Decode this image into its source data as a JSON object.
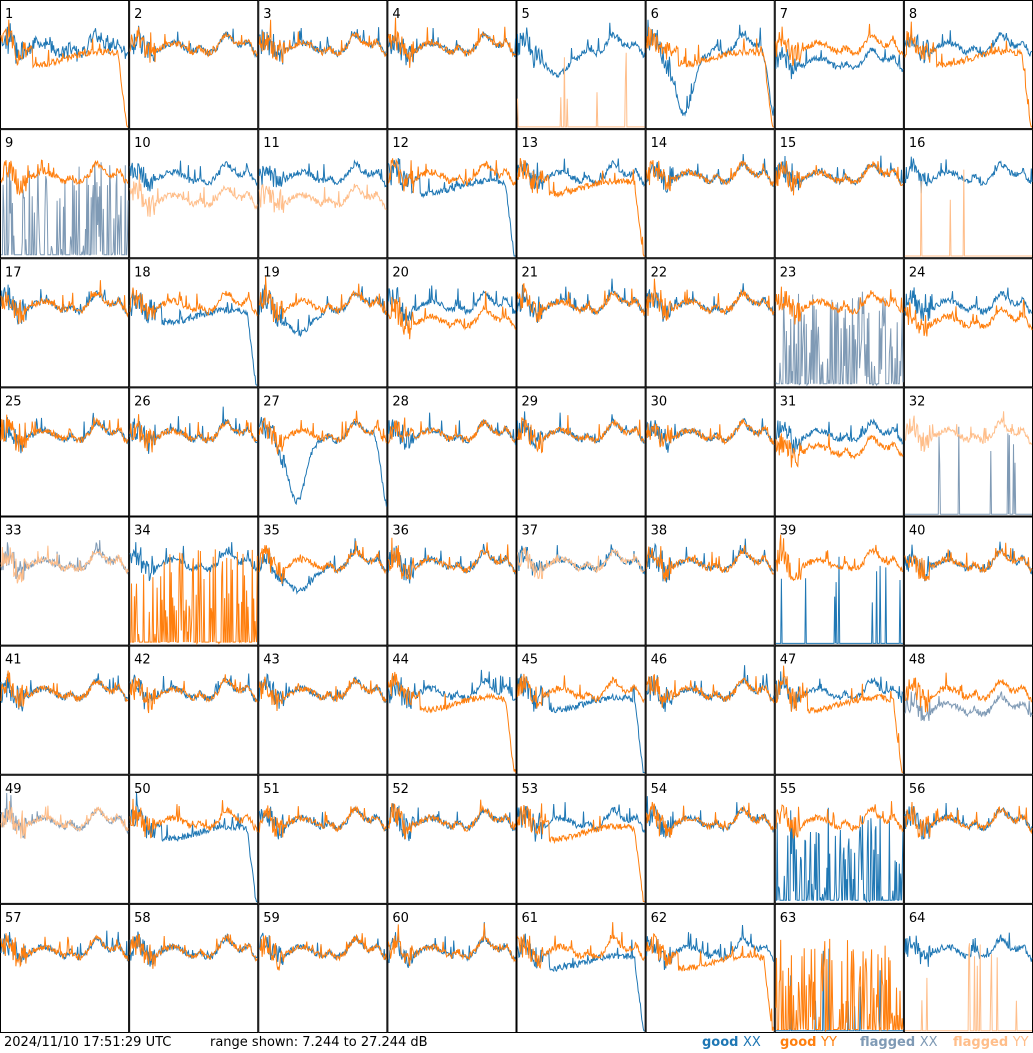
{
  "footer": {
    "timestamp": "2024/11/10 17:51:29 UTC",
    "range_text": "range shown: 7.244 to 27.244 dB"
  },
  "legend": [
    {
      "status": "good",
      "pol": "XX",
      "color": "#1f77b4"
    },
    {
      "status": "good",
      "pol": "YY",
      "color": "#ff7f0e"
    },
    {
      "status": "flagged",
      "pol": "XX",
      "color": "#7f9ab5"
    },
    {
      "status": "flagged",
      "pol": "YY",
      "color": "#ffbe8a"
    }
  ],
  "colors": {
    "good_xx": "#1f77b4",
    "good_yy": "#ff7f0e",
    "flagged_xx": "#7f9ab5",
    "flagged_yy": "#ffbe8a",
    "grid_line": "#000000"
  },
  "chart_data": {
    "type": "line",
    "layout": "8x8 small multiples (one panel per antenna/tile)",
    "ylim_db": [
      7.244,
      27.244
    ],
    "panels": [
      {
        "id": "1",
        "xx": "good",
        "yy": "good",
        "xx_shape": "ripple",
        "yy_shape": "rolloff"
      },
      {
        "id": "2",
        "xx": "good",
        "yy": "good",
        "xx_shape": "normal",
        "yy_shape": "normal"
      },
      {
        "id": "3",
        "xx": "good",
        "yy": "good",
        "xx_shape": "normal",
        "yy_shape": "normal"
      },
      {
        "id": "4",
        "xx": "good",
        "yy": "good",
        "xx_shape": "normal",
        "yy_shape": "normal"
      },
      {
        "id": "5",
        "xx": "good",
        "yy": "flagged",
        "xx_shape": "dip",
        "yy_shape": "dead"
      },
      {
        "id": "6",
        "xx": "good",
        "yy": "good",
        "xx_shape": "deepdip",
        "yy_shape": "rolloff"
      },
      {
        "id": "7",
        "xx": "good",
        "yy": "good",
        "xx_shape": "split",
        "yy_shape": "normal"
      },
      {
        "id": "8",
        "xx": "good",
        "yy": "good",
        "xx_shape": "normal",
        "yy_shape": "rolloff"
      },
      {
        "id": "9",
        "xx": "flagged",
        "yy": "good",
        "xx_shape": "spiky",
        "yy_shape": "normal"
      },
      {
        "id": "10",
        "xx": "good",
        "yy": "flagged",
        "xx_shape": "normal",
        "yy_shape": "low"
      },
      {
        "id": "11",
        "xx": "good",
        "yy": "flagged",
        "xx_shape": "normal",
        "yy_shape": "low"
      },
      {
        "id": "12",
        "xx": "good",
        "yy": "good",
        "xx_shape": "rolloff",
        "yy_shape": "normal"
      },
      {
        "id": "13",
        "xx": "good",
        "yy": "good",
        "xx_shape": "normal",
        "yy_shape": "rolloff"
      },
      {
        "id": "14",
        "xx": "good",
        "yy": "good",
        "xx_shape": "normal",
        "yy_shape": "normal"
      },
      {
        "id": "15",
        "xx": "good",
        "yy": "good",
        "xx_shape": "normal",
        "yy_shape": "normal"
      },
      {
        "id": "16",
        "xx": "good",
        "yy": "flagged",
        "xx_shape": "normal",
        "yy_shape": "dead"
      },
      {
        "id": "17",
        "xx": "good",
        "yy": "good",
        "xx_shape": "normal",
        "yy_shape": "normal"
      },
      {
        "id": "18",
        "xx": "good",
        "yy": "good",
        "xx_shape": "rolloff",
        "yy_shape": "normal"
      },
      {
        "id": "19",
        "xx": "good",
        "yy": "good",
        "xx_shape": "dip",
        "yy_shape": "normal"
      },
      {
        "id": "20",
        "xx": "good",
        "yy": "good",
        "xx_shape": "normal",
        "yy_shape": "split"
      },
      {
        "id": "21",
        "xx": "good",
        "yy": "good",
        "xx_shape": "normal",
        "yy_shape": "normal"
      },
      {
        "id": "22",
        "xx": "good",
        "yy": "good",
        "xx_shape": "normal",
        "yy_shape": "normal"
      },
      {
        "id": "23",
        "xx": "flagged",
        "yy": "good",
        "xx_shape": "spiky",
        "yy_shape": "normal"
      },
      {
        "id": "24",
        "xx": "good",
        "yy": "good",
        "xx_shape": "normal",
        "yy_shape": "split"
      },
      {
        "id": "25",
        "xx": "good",
        "yy": "good",
        "xx_shape": "normal",
        "yy_shape": "normal"
      },
      {
        "id": "26",
        "xx": "good",
        "yy": "good",
        "xx_shape": "normal",
        "yy_shape": "normal"
      },
      {
        "id": "27",
        "xx": "good",
        "yy": "good",
        "xx_shape": "deepdip",
        "yy_shape": "normal"
      },
      {
        "id": "28",
        "xx": "good",
        "yy": "good",
        "xx_shape": "normal",
        "yy_shape": "normal"
      },
      {
        "id": "29",
        "xx": "good",
        "yy": "good",
        "xx_shape": "normal",
        "yy_shape": "normal"
      },
      {
        "id": "30",
        "xx": "good",
        "yy": "good",
        "xx_shape": "normal",
        "yy_shape": "normal"
      },
      {
        "id": "31",
        "xx": "good",
        "yy": "good",
        "xx_shape": "normal",
        "yy_shape": "split"
      },
      {
        "id": "32",
        "xx": "flagged",
        "yy": "flagged",
        "xx_shape": "dead",
        "yy_shape": "normal"
      },
      {
        "id": "33",
        "xx": "flagged",
        "yy": "flagged",
        "xx_shape": "normal",
        "yy_shape": "normal"
      },
      {
        "id": "34",
        "xx": "good",
        "yy": "good",
        "xx_shape": "normal",
        "yy_shape": "spiky"
      },
      {
        "id": "35",
        "xx": "good",
        "yy": "good",
        "xx_shape": "dip",
        "yy_shape": "normal"
      },
      {
        "id": "36",
        "xx": "good",
        "yy": "good",
        "xx_shape": "normal",
        "yy_shape": "normal"
      },
      {
        "id": "37",
        "xx": "good",
        "yy": "flagged",
        "xx_shape": "normal",
        "yy_shape": "normal"
      },
      {
        "id": "38",
        "xx": "good",
        "yy": "good",
        "xx_shape": "normal",
        "yy_shape": "normal"
      },
      {
        "id": "39",
        "xx": "good",
        "yy": "good",
        "xx_shape": "dead",
        "yy_shape": "normal"
      },
      {
        "id": "40",
        "xx": "good",
        "yy": "good",
        "xx_shape": "normal",
        "yy_shape": "normal"
      },
      {
        "id": "41",
        "xx": "good",
        "yy": "good",
        "xx_shape": "normal",
        "yy_shape": "normal"
      },
      {
        "id": "42",
        "xx": "good",
        "yy": "good",
        "xx_shape": "normal",
        "yy_shape": "normal"
      },
      {
        "id": "43",
        "xx": "good",
        "yy": "good",
        "xx_shape": "normal",
        "yy_shape": "normal"
      },
      {
        "id": "44",
        "xx": "good",
        "yy": "good",
        "xx_shape": "normal",
        "yy_shape": "rolloff"
      },
      {
        "id": "45",
        "xx": "good",
        "yy": "good",
        "xx_shape": "rolloff",
        "yy_shape": "normal"
      },
      {
        "id": "46",
        "xx": "good",
        "yy": "good",
        "xx_shape": "normal",
        "yy_shape": "normal"
      },
      {
        "id": "47",
        "xx": "good",
        "yy": "good",
        "xx_shape": "normal",
        "yy_shape": "rolloff"
      },
      {
        "id": "48",
        "xx": "flagged",
        "yy": "good",
        "xx_shape": "split",
        "yy_shape": "normal"
      },
      {
        "id": "49",
        "xx": "flagged",
        "yy": "flagged",
        "xx_shape": "normal",
        "yy_shape": "normal"
      },
      {
        "id": "50",
        "xx": "good",
        "yy": "good",
        "xx_shape": "rolloff",
        "yy_shape": "normal"
      },
      {
        "id": "51",
        "xx": "good",
        "yy": "good",
        "xx_shape": "normal",
        "yy_shape": "normal"
      },
      {
        "id": "52",
        "xx": "good",
        "yy": "good",
        "xx_shape": "normal",
        "yy_shape": "normal"
      },
      {
        "id": "53",
        "xx": "good",
        "yy": "good",
        "xx_shape": "normal",
        "yy_shape": "rolloff"
      },
      {
        "id": "54",
        "xx": "good",
        "yy": "good",
        "xx_shape": "normal",
        "yy_shape": "normal"
      },
      {
        "id": "55",
        "xx": "good",
        "yy": "good",
        "xx_shape": "spiky",
        "yy_shape": "normal"
      },
      {
        "id": "56",
        "xx": "good",
        "yy": "good",
        "xx_shape": "normal",
        "yy_shape": "normal"
      },
      {
        "id": "57",
        "xx": "good",
        "yy": "good",
        "xx_shape": "normal",
        "yy_shape": "normal"
      },
      {
        "id": "58",
        "xx": "good",
        "yy": "good",
        "xx_shape": "normal",
        "yy_shape": "normal"
      },
      {
        "id": "59",
        "xx": "good",
        "yy": "good",
        "xx_shape": "normal",
        "yy_shape": "normal"
      },
      {
        "id": "60",
        "xx": "good",
        "yy": "good",
        "xx_shape": "normal",
        "yy_shape": "normal"
      },
      {
        "id": "61",
        "xx": "good",
        "yy": "good",
        "xx_shape": "rolloff",
        "yy_shape": "normal"
      },
      {
        "id": "62",
        "xx": "good",
        "yy": "good",
        "xx_shape": "normal",
        "yy_shape": "rolloff"
      },
      {
        "id": "63",
        "xx": "good",
        "yy": "good",
        "xx_shape": "dead",
        "yy_shape": "spiky"
      },
      {
        "id": "64",
        "xx": "good",
        "yy": "flagged",
        "xx_shape": "normal",
        "yy_shape": "dead"
      }
    ]
  }
}
